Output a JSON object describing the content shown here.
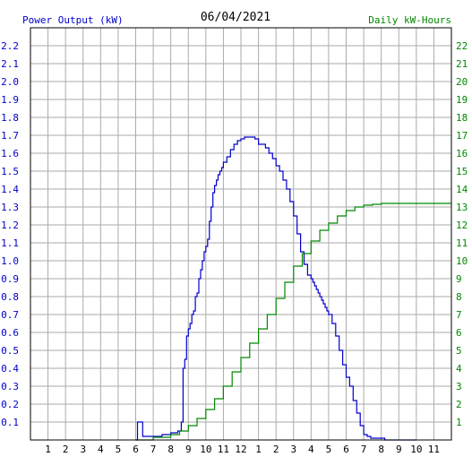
{
  "chart_data": {
    "type": "line",
    "title": "06/04/2021",
    "left_axis_label": "Power Output (kW)",
    "right_axis_label": "Daily kW-Hours",
    "x_tick_labels": [
      "1",
      "2",
      "3",
      "4",
      "5",
      "6",
      "7",
      "8",
      "9",
      "10",
      "11",
      "12",
      "1",
      "2",
      "3",
      "4",
      "5",
      "6",
      "7",
      "8",
      "9",
      "10",
      "11"
    ],
    "left_axis": {
      "range": [
        0,
        2.3
      ],
      "ticks": [
        "0.1",
        "0.2",
        "0.3",
        "0.4",
        "0.5",
        "0.6",
        "0.7",
        "0.8",
        "0.9",
        "1.0",
        "1.1",
        "1.2",
        "1.3",
        "1.4",
        "1.5",
        "1.6",
        "1.7",
        "1.8",
        "1.9",
        "2.0",
        "2.1",
        "2.2"
      ]
    },
    "right_axis": {
      "range": [
        0,
        23
      ],
      "ticks": [
        "1",
        "2",
        "3",
        "4",
        "5",
        "6",
        "7",
        "8",
        "9",
        "10",
        "11",
        "12",
        "13",
        "14",
        "15",
        "16",
        "17",
        "18",
        "19",
        "20",
        "21",
        "22"
      ]
    },
    "grid": true,
    "colors": {
      "power": "#0000cc",
      "energy": "#008800",
      "left_axis_text": "#0000cc",
      "right_axis_text": "#008800",
      "grid": "#aaaaaa"
    },
    "series": [
      {
        "name": "Power Output (kW)",
        "axis": "left",
        "x_hours": [
          6.0,
          6.1,
          6.35,
          6.4,
          6.45,
          7.0,
          7.5,
          8.0,
          8.4,
          8.6,
          8.7,
          8.8,
          8.9,
          9.0,
          9.1,
          9.2,
          9.3,
          9.4,
          9.5,
          9.6,
          9.7,
          9.8,
          9.9,
          10.0,
          10.1,
          10.2,
          10.3,
          10.4,
          10.5,
          10.6,
          10.7,
          10.8,
          10.9,
          11.0,
          11.2,
          11.4,
          11.6,
          11.8,
          12.0,
          12.2,
          12.4,
          12.6,
          12.8,
          13.0,
          13.2,
          13.4,
          13.6,
          13.8,
          14.0,
          14.2,
          14.4,
          14.6,
          14.8,
          15.0,
          15.2,
          15.4,
          15.6,
          15.8,
          16.0,
          16.1,
          16.2,
          16.3,
          16.4,
          16.5,
          16.6,
          16.7,
          16.8,
          16.9,
          17.0,
          17.2,
          17.4,
          17.6,
          17.8,
          18.0,
          18.2,
          18.4,
          18.6,
          18.8,
          19.0,
          19.2,
          19.4,
          19.6,
          19.8,
          20.0,
          20.1,
          20.2,
          20.4,
          21.0,
          22.0
        ],
        "values": [
          0.0,
          0.1,
          0.1,
          0.02,
          0.02,
          0.02,
          0.03,
          0.04,
          0.05,
          0.1,
          0.4,
          0.45,
          0.58,
          0.62,
          0.65,
          0.7,
          0.72,
          0.8,
          0.82,
          0.9,
          0.95,
          1.0,
          1.05,
          1.08,
          1.12,
          1.22,
          1.3,
          1.38,
          1.42,
          1.45,
          1.48,
          1.5,
          1.52,
          1.55,
          1.58,
          1.62,
          1.65,
          1.67,
          1.68,
          1.69,
          1.69,
          1.69,
          1.68,
          1.65,
          1.65,
          1.63,
          1.6,
          1.57,
          1.53,
          1.5,
          1.45,
          1.4,
          1.33,
          1.25,
          1.15,
          1.05,
          0.98,
          0.92,
          0.9,
          0.88,
          0.86,
          0.84,
          0.82,
          0.8,
          0.78,
          0.76,
          0.74,
          0.72,
          0.7,
          0.65,
          0.58,
          0.5,
          0.42,
          0.35,
          0.3,
          0.22,
          0.15,
          0.08,
          0.03,
          0.02,
          0.01,
          0.01,
          0.01,
          0.01,
          0.01,
          0.0,
          0.0,
          0.0,
          0.0
        ]
      },
      {
        "name": "Daily kW-Hours",
        "axis": "right",
        "x_hours": [
          6.0,
          7.0,
          8.0,
          8.5,
          9.0,
          9.5,
          10.0,
          10.5,
          11.0,
          11.5,
          12.0,
          12.5,
          13.0,
          13.5,
          14.0,
          14.5,
          15.0,
          15.5,
          16.0,
          16.5,
          17.0,
          17.5,
          18.0,
          18.5,
          19.0,
          19.5,
          20.0,
          20.5,
          21.0,
          22.0,
          23.0,
          24.0
        ],
        "values": [
          0.0,
          0.15,
          0.3,
          0.5,
          0.8,
          1.2,
          1.7,
          2.3,
          3.0,
          3.8,
          4.6,
          5.4,
          6.2,
          7.0,
          7.9,
          8.8,
          9.7,
          10.4,
          11.1,
          11.7,
          12.1,
          12.5,
          12.8,
          13.0,
          13.1,
          13.15,
          13.2,
          13.2,
          13.2,
          13.2,
          13.2,
          13.2
        ]
      }
    ]
  }
}
